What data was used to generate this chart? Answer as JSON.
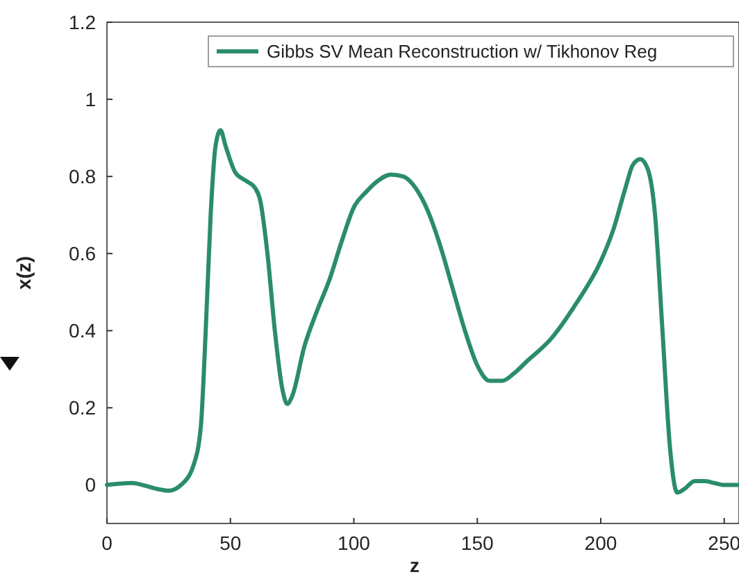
{
  "chart_data": {
    "type": "line",
    "xlabel": "z",
    "ylabel": "x(z)",
    "xlim": [
      0,
      256
    ],
    "ylim": [
      -0.1,
      1.2
    ],
    "xticks": [
      0,
      50,
      100,
      150,
      200,
      250
    ],
    "yticks": [
      0,
      0.2,
      0.4,
      0.6,
      0.8,
      1,
      1.2
    ],
    "grid": false,
    "legend": "top right",
    "marker": "none",
    "line_style": "solid",
    "series": [
      {
        "name": "Gibbs SV Mean Reconstruction w/ Tikhonov Reg",
        "color": "#2a8c6e",
        "x": [
          0,
          10,
          20,
          25,
          30,
          35,
          38,
          40,
          42,
          44,
          46,
          48,
          52,
          56,
          60,
          62,
          65,
          68,
          71,
          73,
          75,
          80,
          85,
          90,
          95,
          100,
          105,
          110,
          115,
          120,
          125,
          130,
          135,
          140,
          145,
          150,
          155,
          160,
          165,
          170,
          180,
          190,
          200,
          205,
          210,
          213,
          216,
          219,
          222,
          225,
          228,
          231,
          234,
          238,
          242,
          246,
          250,
          256
        ],
        "values": [
          0,
          0.005,
          -0.01,
          -0.015,
          0,
          0.05,
          0.15,
          0.4,
          0.7,
          0.88,
          0.92,
          0.88,
          0.81,
          0.79,
          0.77,
          0.74,
          0.6,
          0.4,
          0.25,
          0.21,
          0.23,
          0.36,
          0.45,
          0.53,
          0.63,
          0.72,
          0.76,
          0.79,
          0.805,
          0.8,
          0.77,
          0.71,
          0.62,
          0.51,
          0.4,
          0.31,
          0.27,
          0.27,
          0.29,
          0.32,
          0.38,
          0.47,
          0.58,
          0.66,
          0.77,
          0.83,
          0.845,
          0.82,
          0.7,
          0.4,
          0.1,
          -0.02,
          -0.01,
          0.01,
          0.01,
          0.005,
          0,
          0
        ]
      }
    ]
  }
}
